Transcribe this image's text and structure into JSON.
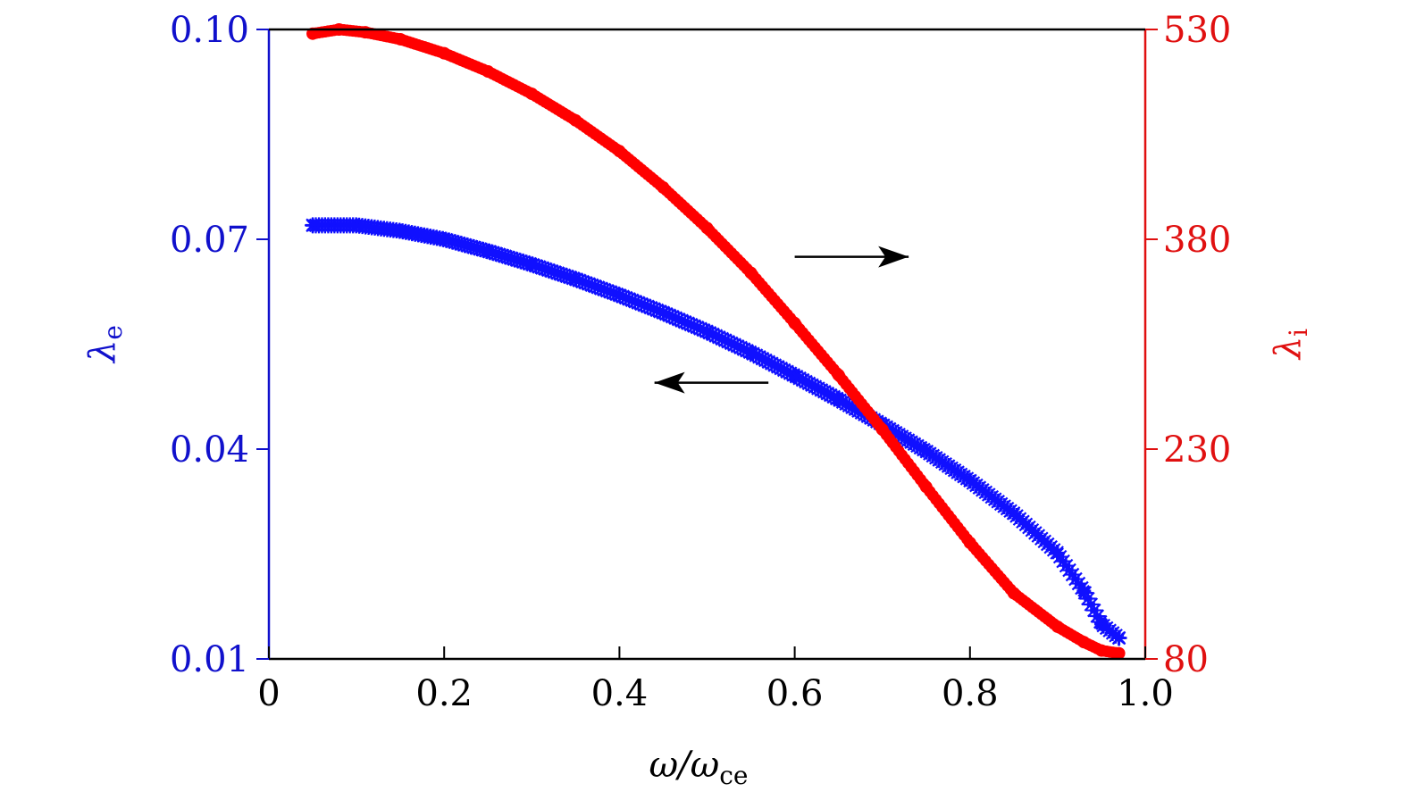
{
  "chart_data": {
    "type": "line",
    "xlabel": "ω/ω",
    "xlabel_sub": "ce",
    "x_ticks": [
      "0",
      "0.2",
      "0.4",
      "0.6",
      "0.8",
      "1.0"
    ],
    "xlim": [
      0,
      1.0
    ],
    "left_axis": {
      "label": "λ",
      "label_sub": "e",
      "ticks": [
        "0.01",
        "0.04",
        "0.07",
        "0.10"
      ],
      "ylim": [
        0.01,
        0.1
      ],
      "color": "#1010cc"
    },
    "right_axis": {
      "label": "λ",
      "label_sub": "i",
      "ticks": [
        "80",
        "230",
        "380",
        "530"
      ],
      "ylim": [
        80,
        530
      ],
      "color": "#e01010"
    },
    "series": [
      {
        "axis": "left",
        "marker": "asterisk",
        "color": "#1010ff",
        "x": [
          0.05,
          0.1,
          0.15,
          0.2,
          0.25,
          0.3,
          0.35,
          0.4,
          0.45,
          0.5,
          0.55,
          0.6,
          0.65,
          0.7,
          0.75,
          0.8,
          0.85,
          0.9,
          0.93,
          0.95,
          0.97
        ],
        "y": [
          0.072,
          0.072,
          0.0712,
          0.07,
          0.0683,
          0.0664,
          0.0643,
          0.062,
          0.0595,
          0.0568,
          0.0538,
          0.0505,
          0.0471,
          0.0435,
          0.0397,
          0.0355,
          0.0308,
          0.0251,
          0.0197,
          0.015,
          0.013
        ]
      },
      {
        "axis": "right",
        "marker": "circle",
        "color": "#ff0000",
        "x": [
          0.05,
          0.08,
          0.11,
          0.15,
          0.2,
          0.25,
          0.3,
          0.35,
          0.4,
          0.45,
          0.5,
          0.55,
          0.6,
          0.65,
          0.7,
          0.75,
          0.8,
          0.85,
          0.9,
          0.93,
          0.95,
          0.97
        ],
        "y": [
          527,
          530,
          528,
          523,
          513,
          500,
          484,
          465,
          443,
          417,
          388,
          356,
          320,
          283,
          244,
          203,
          163,
          127,
          103,
          92,
          86,
          84
        ]
      }
    ],
    "annotations": [
      {
        "type": "arrow",
        "direction": "right",
        "from": [
          0.6,
          0.0675
        ],
        "to": [
          0.73,
          0.0675
        ],
        "axis": "left"
      },
      {
        "type": "arrow",
        "direction": "left",
        "from": [
          0.57,
          0.0495
        ],
        "to": [
          0.44,
          0.0495
        ],
        "axis": "left"
      }
    ],
    "grid": false,
    "legend": "none"
  }
}
